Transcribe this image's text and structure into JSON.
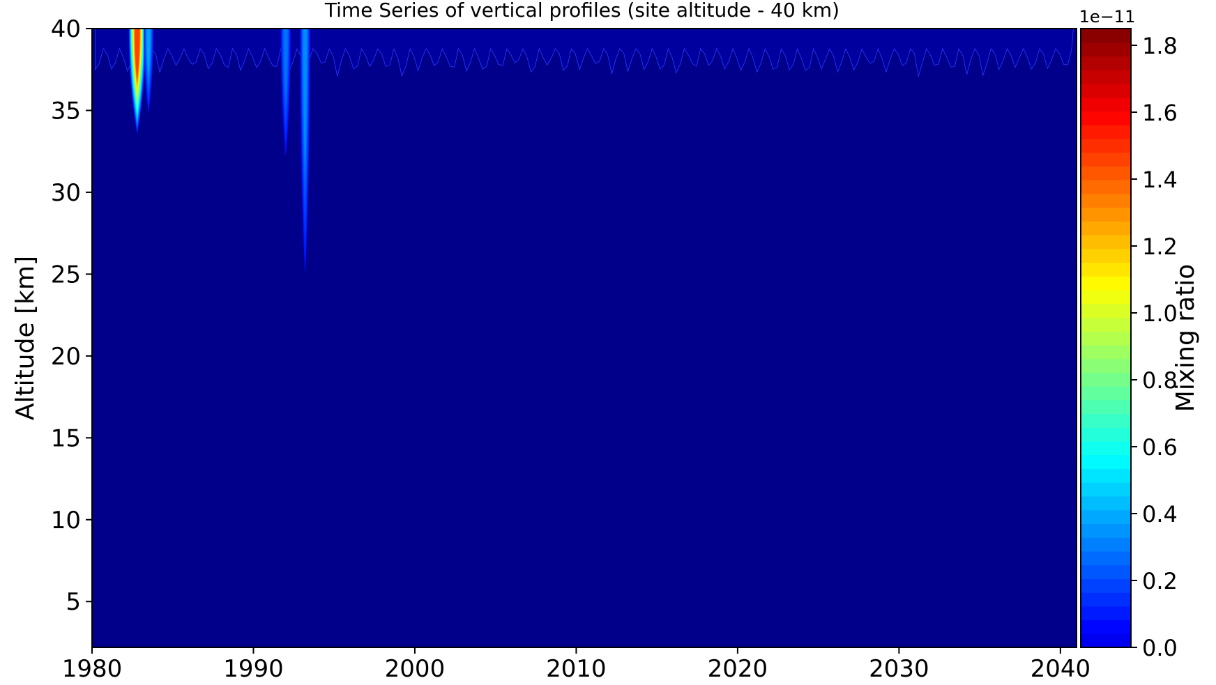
{
  "chart_data": {
    "type": "heatmap",
    "title": "Time Series of vertical profiles (site altitude - 40 km)",
    "xlabel": "",
    "ylabel": "Altitude [km]",
    "xlim": [
      1980,
      2041
    ],
    "ylim": [
      2.2,
      40
    ],
    "x_ticks": [
      1980,
      1990,
      2000,
      2010,
      2020,
      2030,
      2040
    ],
    "y_ticks": [
      5,
      10,
      15,
      20,
      25,
      30,
      35,
      40
    ],
    "colorbar": {
      "label": "Mixing ratio",
      "scale_label": "1e−11",
      "range": [
        0.0,
        1.85
      ],
      "ticks": [
        "0.0",
        "0.2",
        "0.4",
        "0.6",
        "0.8",
        "1.0",
        "1.2",
        "1.4",
        "1.6",
        "1.8"
      ],
      "tick_values": [
        0.0,
        0.2,
        0.4,
        0.6,
        0.8,
        1.0,
        1.2,
        1.4,
        1.6,
        1.8
      ],
      "levels": 45,
      "colormap": "jet"
    },
    "background_color": "#00008b",
    "features": [
      {
        "year": 1982.8,
        "bottom_km": 33.5,
        "peak": 1.45
      },
      {
        "year": 1983.5,
        "bottom_km": 34.8,
        "peak": 0.35
      },
      {
        "year": 1992.0,
        "bottom_km": 32.2,
        "peak": 0.25
      },
      {
        "year": 1993.2,
        "bottom_km": 25.0,
        "peak": 0.3
      }
    ],
    "seasonal_layer": {
      "start_year": 1980.2,
      "end_year": 2040.8,
      "depth_km_min": 1.2,
      "depth_km_max": 3.0
    }
  }
}
